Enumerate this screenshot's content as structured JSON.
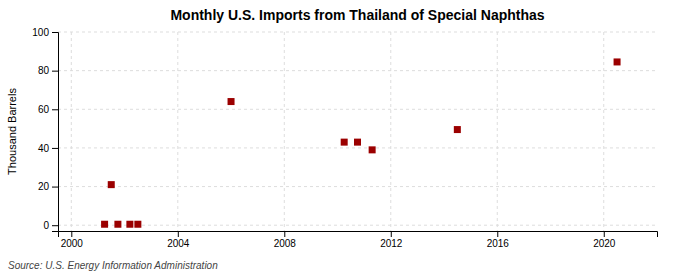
{
  "chart_data": {
    "type": "scatter",
    "title": "Monthly U.S. Imports from Thailand of Special Naphthas",
    "ylabel": "Thousand Barrels",
    "source": "Source: U.S. Energy Information Administration",
    "x": [
      2001.25,
      2001.75,
      2002.2,
      2002.5,
      2001.5,
      2006.0,
      2010.25,
      2010.75,
      2011.3,
      2014.5,
      2020.5
    ],
    "values": [
      0.5,
      0.5,
      0.5,
      0.5,
      21.0,
      64.0,
      43.0,
      43.0,
      39.0,
      49.5,
      84.5
    ],
    "color": "#9b0000",
    "marker": "square",
    "xlim": [
      1999.5,
      2022
    ],
    "ylim": [
      -3,
      100
    ],
    "xticks": [
      2000,
      2004,
      2008,
      2012,
      2016,
      2020
    ],
    "yticks": [
      0,
      20,
      40,
      60,
      80,
      100
    ],
    "grid": true
  }
}
